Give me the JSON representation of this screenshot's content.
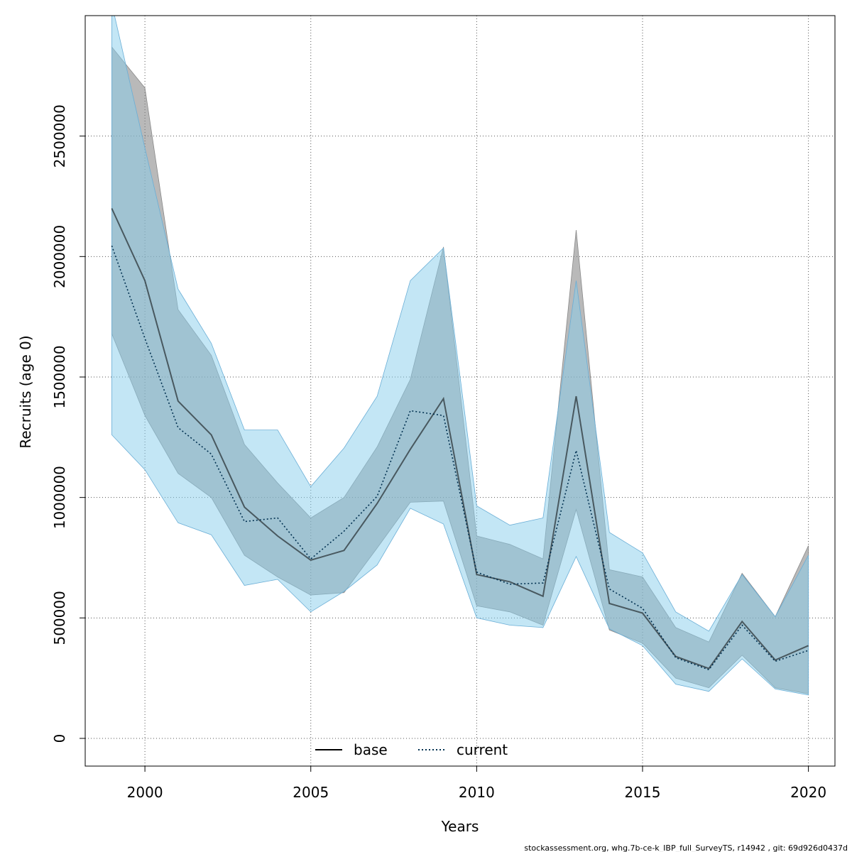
{
  "chart_data": {
    "type": "line",
    "xlabel": "Years",
    "ylabel": "Recruits (age 0)",
    "xlim": [
      1998.2,
      2020.8
    ],
    "ylim": [
      -115000,
      3000000
    ],
    "x_ticks": [
      2000,
      2005,
      2010,
      2015,
      2020
    ],
    "y_ticks": [
      0,
      500000,
      1000000,
      1500000,
      2000000,
      2500000
    ],
    "grid": true,
    "legend_position": "bottom",
    "x": [
      1999,
      2000,
      2001,
      2002,
      2003,
      2004,
      2005,
      2006,
      2007,
      2008,
      2009,
      2010,
      2011,
      2012,
      2013,
      2014,
      2015,
      2016,
      2017,
      2018,
      2019,
      2020
    ],
    "series": [
      {
        "name": "base",
        "line_style": "solid",
        "line_color": "#000000",
        "band_color": "#808080",
        "values": [
          2200000,
          1900000,
          1400000,
          1260000,
          960000,
          840000,
          740000,
          780000,
          975000,
          1200000,
          1410000,
          680000,
          650000,
          590000,
          1420000,
          560000,
          520000,
          340000,
          290000,
          485000,
          325000,
          385000
        ],
        "lower": [
          1680000,
          1340000,
          1100000,
          1000000,
          760000,
          670000,
          595000,
          605000,
          790000,
          980000,
          985000,
          550000,
          525000,
          470000,
          950000,
          450000,
          395000,
          250000,
          210000,
          345000,
          210000,
          185000
        ],
        "upper": [
          2870000,
          2700000,
          1780000,
          1590000,
          1220000,
          1060000,
          915000,
          1000000,
          1210000,
          1490000,
          2040000,
          840000,
          805000,
          745000,
          2110000,
          700000,
          670000,
          460000,
          400000,
          685000,
          505000,
          800000
        ]
      },
      {
        "name": "current",
        "line_style": "dotted",
        "line_color": "#003050",
        "band_color": "#87CEEB",
        "values": [
          2045000,
          1660000,
          1290000,
          1180000,
          900000,
          915000,
          745000,
          860000,
          1005000,
          1360000,
          1340000,
          690000,
          640000,
          645000,
          1195000,
          620000,
          540000,
          335000,
          285000,
          470000,
          320000,
          365000
        ],
        "lower": [
          1260000,
          1115000,
          895000,
          845000,
          635000,
          660000,
          525000,
          610000,
          720000,
          955000,
          890000,
          500000,
          470000,
          460000,
          755000,
          455000,
          385000,
          225000,
          195000,
          330000,
          205000,
          180000
        ],
        "upper": [
          3050000,
          2450000,
          1865000,
          1640000,
          1280000,
          1280000,
          1045000,
          1205000,
          1420000,
          1900000,
          2035000,
          965000,
          885000,
          915000,
          1900000,
          855000,
          770000,
          525000,
          445000,
          680000,
          505000,
          760000
        ]
      }
    ]
  },
  "footer": "stockassessment.org, whg.7b-ce-k_IBP_full_SurveyTS, r14942 , git: 69d926d0437d"
}
